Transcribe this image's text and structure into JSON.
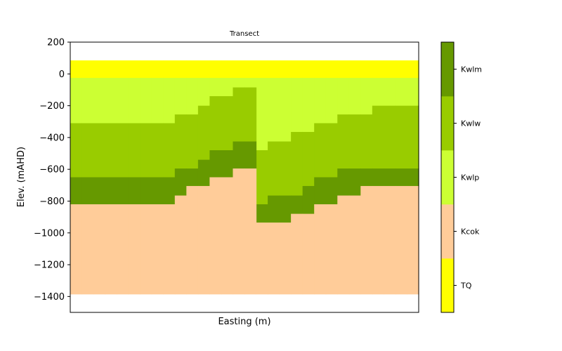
{
  "chart_data": {
    "type": "heatmap",
    "title": "Transect",
    "xlabel": "Easting (m)",
    "ylabel": "Elev. (mAHD)",
    "ylim": [
      -1500,
      200
    ],
    "yticks": [
      200,
      0,
      -200,
      -400,
      -600,
      -800,
      -1000,
      -1200,
      -1400
    ],
    "xticks_visible": false,
    "grid": false,
    "colorbar": {
      "placement": "right",
      "categories": [
        {
          "name": "TQ",
          "color": "#ffff00"
        },
        {
          "name": "Kcok",
          "color": "#ffcc99"
        },
        {
          "name": "Kwlp",
          "color": "#ccff33"
        },
        {
          "name": "Kwlw",
          "color": "#99cc00"
        },
        {
          "name": "Kwlm",
          "color": "#669900"
        }
      ]
    },
    "columns": 30,
    "layers": [
      {
        "name": "TQ",
        "top": [
          85,
          85,
          85,
          85,
          85,
          85,
          85,
          85,
          85,
          85,
          85,
          85,
          85,
          85,
          85,
          85,
          85,
          85,
          85,
          85,
          85,
          85,
          85,
          85,
          85,
          85,
          85,
          85,
          85,
          85
        ],
        "bottom": [
          -25,
          -25,
          -25,
          -25,
          -25,
          -25,
          -25,
          -25,
          -25,
          -25,
          -25,
          -25,
          -25,
          -25,
          -25,
          -25,
          -25,
          -25,
          -25,
          -25,
          -25,
          -25,
          -25,
          -25,
          -25,
          -25,
          -25,
          -25,
          -25,
          -25
        ]
      },
      {
        "name": "Kwlp",
        "top": [
          -25,
          -25,
          -25,
          -25,
          -25,
          -25,
          -25,
          -25,
          -25,
          -25,
          -25,
          -25,
          -25,
          -25,
          -25,
          -25,
          -25,
          -25,
          -25,
          -25,
          -25,
          -25,
          -25,
          -25,
          -25,
          -25,
          -25,
          -25,
          -25,
          -25
        ],
        "bottom": [
          -310,
          -310,
          -310,
          -310,
          -310,
          -310,
          -310,
          -310,
          -310,
          -255,
          -255,
          -200,
          -140,
          -140,
          -85,
          -85,
          -480,
          -425,
          -425,
          -365,
          -365,
          -310,
          -310,
          -255,
          -255,
          -255,
          -200,
          -200,
          -200,
          -200
        ]
      },
      {
        "name": "Kwlw",
        "top": [
          -310,
          -310,
          -310,
          -310,
          -310,
          -310,
          -310,
          -310,
          -310,
          -255,
          -255,
          -200,
          -140,
          -140,
          -85,
          -85,
          -480,
          -425,
          -425,
          -365,
          -365,
          -310,
          -310,
          -255,
          -255,
          -255,
          -200,
          -200,
          -200,
          -200
        ],
        "bottom": [
          -650,
          -650,
          -650,
          -650,
          -650,
          -650,
          -650,
          -650,
          -650,
          -595,
          -595,
          -540,
          -480,
          -480,
          -425,
          -425,
          -820,
          -765,
          -765,
          -765,
          -705,
          -650,
          -650,
          -595,
          -595,
          -595,
          -595,
          -595,
          -595,
          -595
        ]
      },
      {
        "name": "Kwlm",
        "top": [
          -650,
          -650,
          -650,
          -650,
          -650,
          -650,
          -650,
          -650,
          -650,
          -595,
          -595,
          -540,
          -480,
          -480,
          -425,
          -425,
          -820,
          -765,
          -765,
          -765,
          -705,
          -650,
          -650,
          -595,
          -595,
          -595,
          -595,
          -595,
          -595,
          -595
        ],
        "bottom": [
          -820,
          -820,
          -820,
          -820,
          -820,
          -820,
          -820,
          -820,
          -820,
          -765,
          -705,
          -705,
          -650,
          -650,
          -595,
          -595,
          -935,
          -935,
          -935,
          -880,
          -880,
          -820,
          -820,
          -765,
          -765,
          -705,
          -705,
          -705,
          -705,
          -705
        ]
      },
      {
        "name": "Kcok",
        "top": [
          -820,
          -820,
          -820,
          -820,
          -820,
          -820,
          -820,
          -820,
          -820,
          -765,
          -705,
          -705,
          -650,
          -650,
          -595,
          -595,
          -935,
          -935,
          -935,
          -880,
          -880,
          -820,
          -820,
          -765,
          -765,
          -705,
          -705,
          -705,
          -705,
          -705
        ],
        "bottom": [
          -1385,
          -1385,
          -1385,
          -1385,
          -1385,
          -1385,
          -1385,
          -1385,
          -1385,
          -1385,
          -1385,
          -1385,
          -1385,
          -1385,
          -1385,
          -1385,
          -1385,
          -1385,
          -1385,
          -1385,
          -1385,
          -1385,
          -1385,
          -1385,
          -1385,
          -1385,
          -1385,
          -1385,
          -1385,
          -1385
        ]
      }
    ]
  }
}
